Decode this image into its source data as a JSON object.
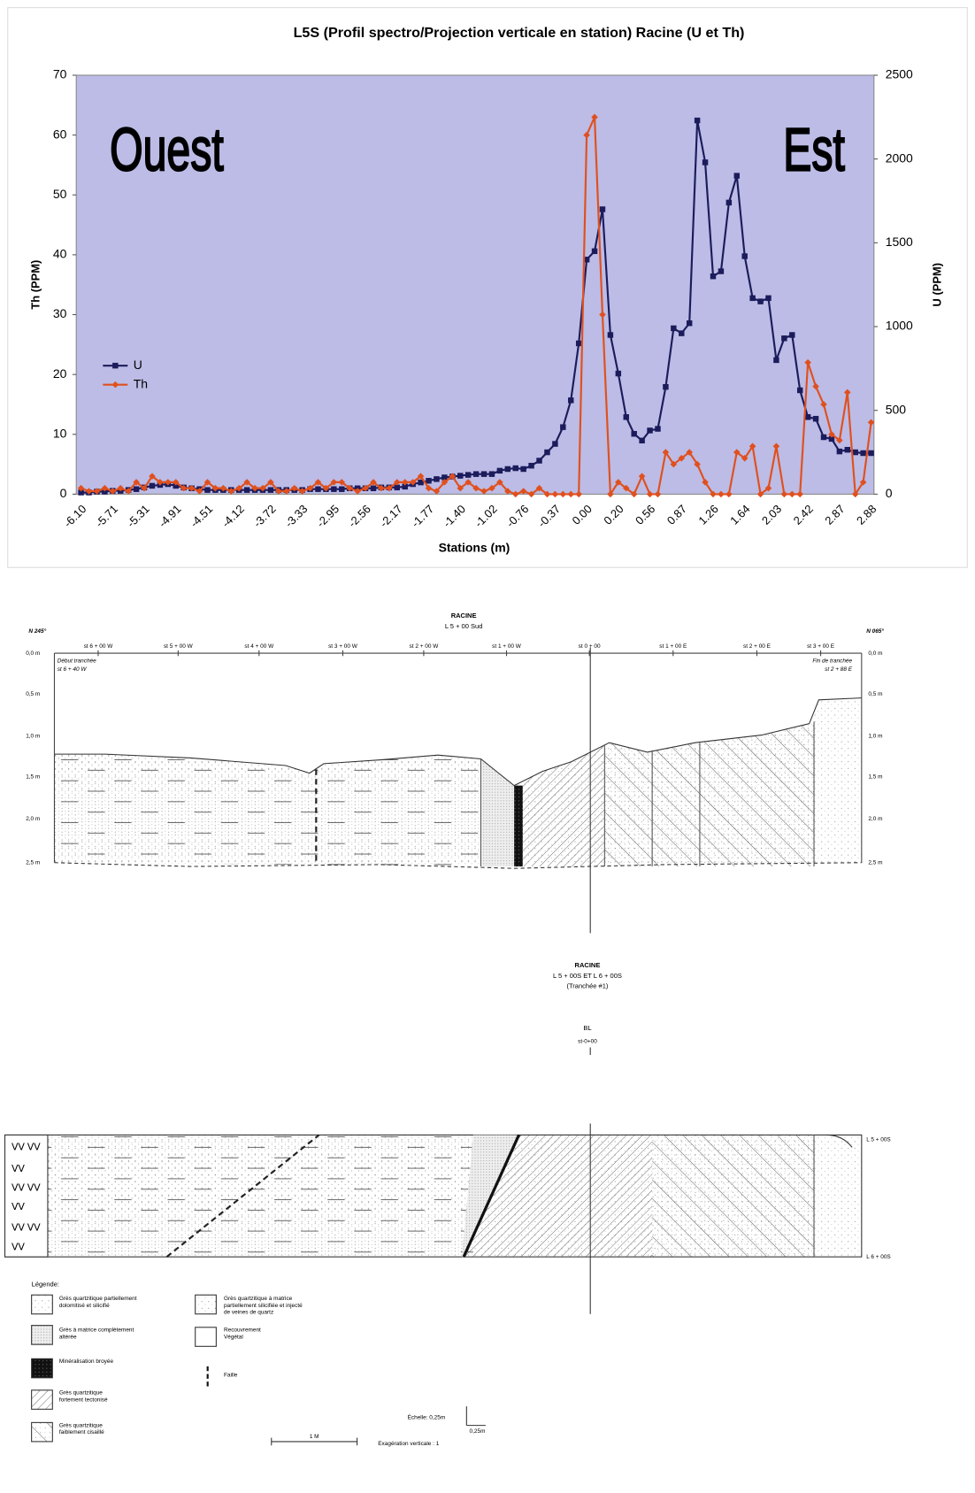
{
  "chart_data": {
    "type": "line",
    "title": "L5S (Profil spectro/Projection verticale en station) Racine (U et Th)",
    "x_label": "Stations (m)",
    "y_label": "Th (PPM)",
    "y2_label": "U (PPM)",
    "annotations": [
      "Ouest",
      "Est"
    ],
    "categories": [
      "-6.10",
      null,
      null,
      null,
      "-5.71",
      null,
      null,
      null,
      "-5.31",
      null,
      null,
      null,
      "-4.91",
      null,
      null,
      null,
      "-4.51",
      null,
      null,
      null,
      "-4.12",
      null,
      null,
      null,
      "-3.72",
      null,
      null,
      null,
      "-3.33",
      null,
      null,
      null,
      "-2.95",
      null,
      null,
      null,
      "-2.56",
      null,
      null,
      null,
      "-2.17",
      null,
      null,
      null,
      "-1.77",
      null,
      null,
      null,
      "-1.40",
      null,
      null,
      null,
      "-1.02",
      null,
      null,
      null,
      "-0.76",
      null,
      null,
      null,
      "-0.37",
      null,
      null,
      null,
      "0.00",
      null,
      null,
      null,
      "0.20",
      null,
      null,
      null,
      "0.56",
      null,
      null,
      null,
      "0.87",
      null,
      null,
      null,
      "1.26",
      null,
      null,
      null,
      "1.64",
      null,
      null,
      null,
      "2.03",
      null,
      null,
      null,
      "2.42",
      null,
      null,
      null,
      "2.87",
      null,
      null,
      null,
      "2.88"
    ],
    "series": [
      {
        "name": "U",
        "color": "#1c1c5c",
        "marker": "square",
        "axis": "y2",
        "values": [
          10,
          10,
          15,
          15,
          20,
          20,
          25,
          30,
          40,
          50,
          55,
          60,
          50,
          40,
          35,
          30,
          25,
          25,
          25,
          25,
          25,
          25,
          25,
          25,
          25,
          25,
          25,
          25,
          25,
          30,
          30,
          30,
          30,
          30,
          35,
          35,
          35,
          35,
          40,
          40,
          40,
          45,
          60,
          70,
          80,
          90,
          100,
          105,
          110,
          115,
          120,
          120,
          120,
          140,
          150,
          155,
          150,
          170,
          200,
          250,
          300,
          400,
          560,
          900,
          1400,
          1450,
          1700,
          950,
          720,
          460,
          360,
          320,
          380,
          390,
          640,
          990,
          960,
          1020,
          2230,
          1980,
          1300,
          1330,
          1740,
          1900,
          1420,
          1170,
          1150,
          1170,
          800,
          930,
          950,
          620,
          460,
          450,
          340,
          330,
          255,
          265,
          250,
          245,
          245
        ]
      },
      {
        "name": "Th",
        "color": "#e0501e",
        "marker": "diamond",
        "values": [
          1,
          0.5,
          0.5,
          1,
          0.5,
          1,
          0.5,
          2,
          1,
          3,
          2,
          2,
          2,
          1,
          1,
          0.5,
          2,
          1,
          1,
          0.5,
          1,
          2,
          1,
          1,
          2,
          0.5,
          0.5,
          1,
          0.5,
          1,
          2,
          1,
          2,
          2,
          1,
          0.5,
          1,
          2,
          1,
          1,
          2,
          2,
          2,
          3,
          1,
          0.5,
          2,
          3,
          1,
          2,
          1,
          0.5,
          1,
          2,
          0.5,
          0,
          0.5,
          0,
          1,
          0,
          0,
          0,
          0,
          0,
          60,
          63,
          30,
          0,
          2,
          1,
          0,
          3,
          0,
          0,
          7,
          5,
          6,
          7,
          5,
          2,
          0,
          0,
          0,
          7,
          6,
          8,
          0,
          1,
          8,
          0,
          0,
          0,
          22,
          18,
          15,
          10,
          9,
          17,
          0,
          2,
          12
        ]
      }
    ],
    "ylim": [
      0,
      70
    ],
    "yticks": [
      0,
      10,
      20,
      30,
      40,
      50,
      60,
      70
    ],
    "y2lim": [
      0,
      2500
    ],
    "y2ticks": [
      0,
      500,
      1000,
      1500,
      2000,
      2500
    ],
    "grid": false,
    "legend": "left",
    "background": "#bcbce6"
  },
  "section1": {
    "title": "RACINE",
    "subtitle": "L 5 + 00 Sud",
    "azimuth_left": "N 245°",
    "azimuth_right": "N 065°",
    "stations": [
      "st 6 + 00 W",
      "st 5 + 00 W",
      "st 4 + 00 W",
      "st 3 + 00 W",
      "st 2 + 00 W",
      "st 1 + 00 W",
      "st 0 + 00",
      "st 1 + 00 E",
      "st 2 + 00 E",
      "st 3 + 00 E"
    ],
    "depths": [
      "0,0 m",
      "0,5 m",
      "1,0 m",
      "1,5 m",
      "2,0 m",
      "2,5 m"
    ],
    "start_note": [
      "Début tranchée",
      "st 6 + 40 W"
    ],
    "end_note": [
      "Fin de tranchée",
      "st 2 + 88 E"
    ]
  },
  "section2": {
    "title": "RACINE",
    "subtitle": "L 5 + 00S ET L 6 + 00S",
    "note": "(Tranchée #1)",
    "baseline": "BL",
    "baseline_station": "st-0+00",
    "line_top": "L 5 + 00S",
    "line_bottom": "L 6 + 00S"
  },
  "legend": {
    "title": "Légende:",
    "items": [
      [
        "Grès quartzitique partiellement",
        "dolomitisé et silicifié"
      ],
      [
        "Grès à matrice complètement",
        "altérée"
      ],
      [
        "Minéralisation broyée"
      ],
      [
        "Grès quartzitique",
        "fortement tectonisé"
      ],
      [
        "Grès quartzitique",
        "faiblement cisaillé"
      ],
      [
        "Grès quartzitique à matrice",
        "partiellement silicifiée et injecté",
        "de veines de quartz"
      ],
      [
        "Recouvrement",
        "Végétal"
      ],
      [
        "Faille"
      ]
    ]
  },
  "scale": {
    "label": "Échelle: 0,25m",
    "bar": "0,25m",
    "meter": "1 M",
    "exaggeration": "Exagération verticale : 1"
  }
}
